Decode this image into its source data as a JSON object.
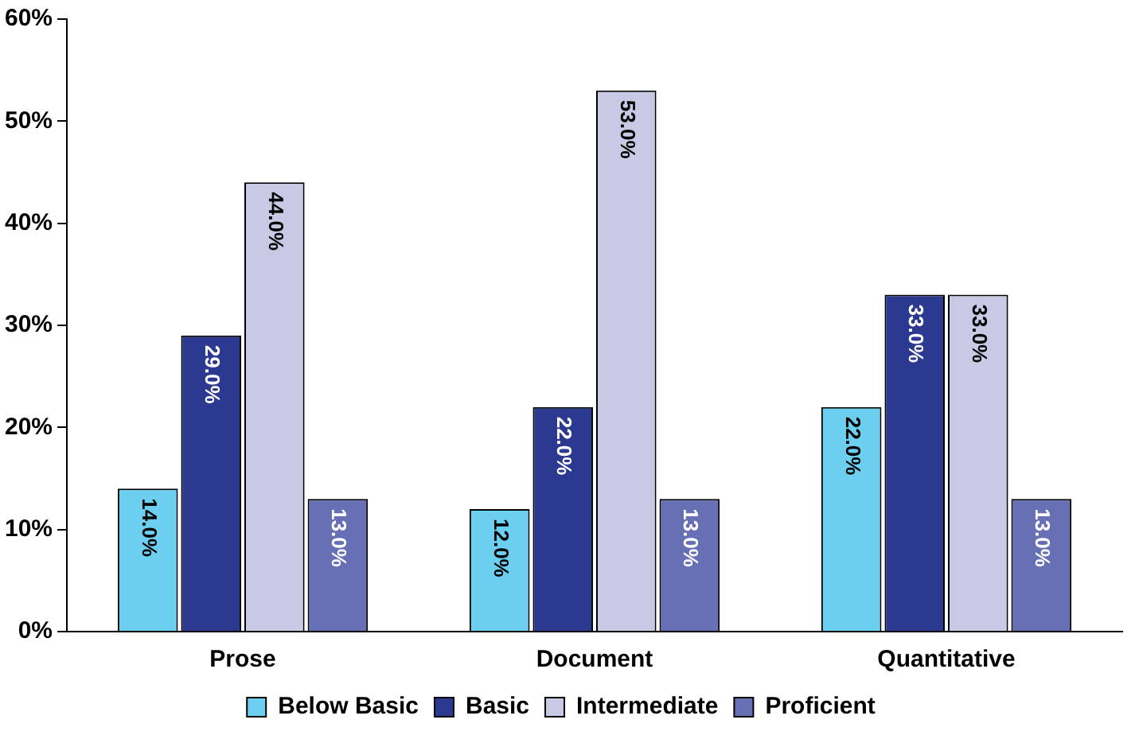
{
  "chart_data": {
    "type": "bar",
    "categories": [
      "Prose",
      "Document",
      "Quantitative"
    ],
    "series": [
      {
        "name": "Below Basic",
        "color": "#6dcff0",
        "values": [
          14,
          12,
          22
        ],
        "value_labels": [
          "14.0%",
          "12.0%",
          "22.0%"
        ]
      },
      {
        "name": "Basic",
        "color": "#2b3990",
        "values": [
          29,
          22,
          33
        ],
        "value_labels": [
          "29.0%",
          "22.0%",
          "33.0%"
        ]
      },
      {
        "name": "Intermediate",
        "color": "#c9c9e6",
        "values": [
          44,
          53,
          33
        ],
        "value_labels": [
          "44.0%",
          "53.0%",
          "33.0%"
        ]
      },
      {
        "name": "Proficient",
        "color": "#6770b5",
        "values": [
          13,
          13,
          13
        ],
        "value_labels": [
          "13.0%",
          "13.0%",
          "13.0%"
        ]
      }
    ],
    "ylim": [
      0,
      60
    ],
    "yticks": [
      {
        "value": 0,
        "label": "0%"
      },
      {
        "value": 10,
        "label": "10%"
      },
      {
        "value": 20,
        "label": "20%"
      },
      {
        "value": 30,
        "label": "30%"
      },
      {
        "value": 40,
        "label": "40%"
      },
      {
        "value": 50,
        "label": "50%"
      },
      {
        "value": 60,
        "label": "60%"
      }
    ],
    "grid": false,
    "legend": "bottom"
  }
}
